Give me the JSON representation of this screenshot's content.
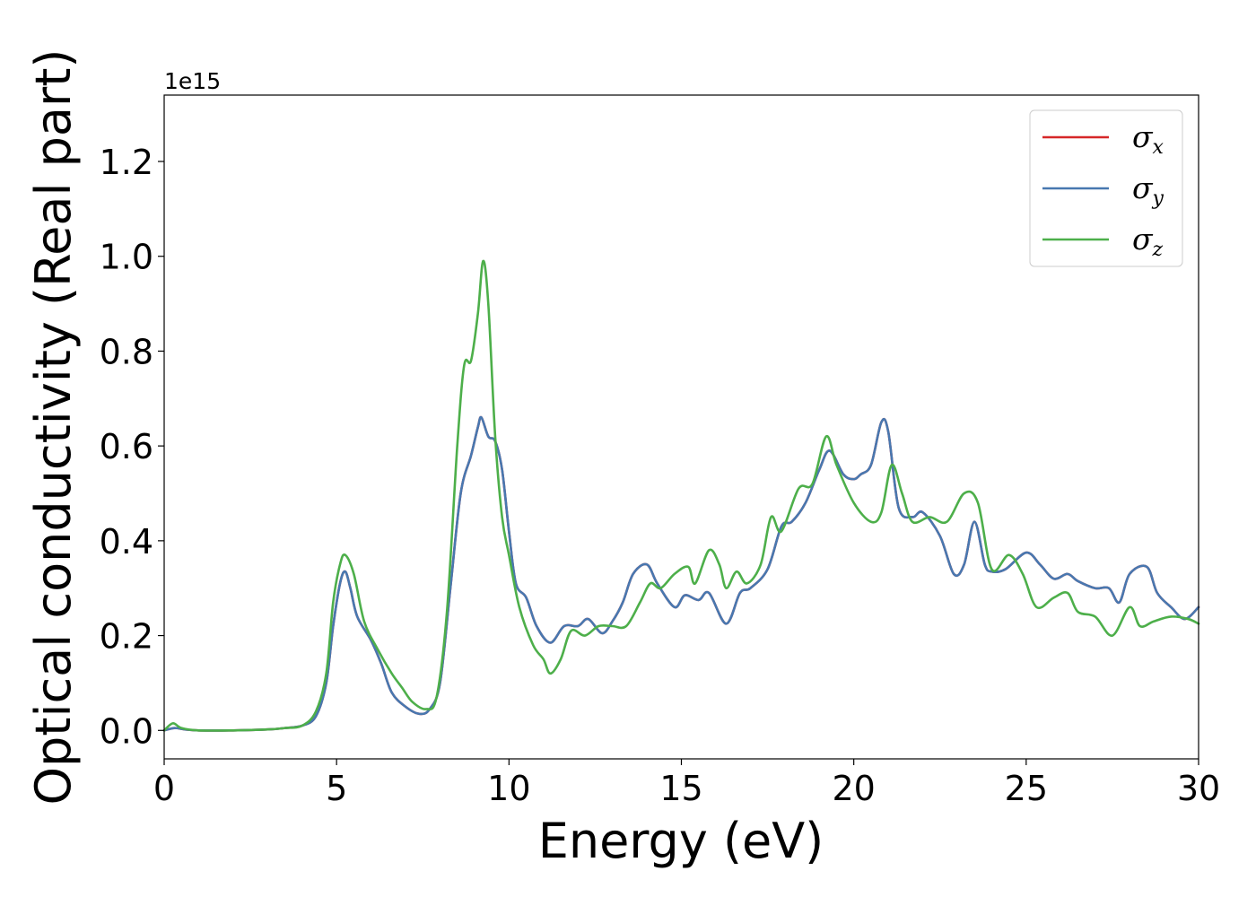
{
  "chart_data": {
    "type": "line",
    "xlabel": "Energy (eV)",
    "ylabel": "Optical conductivity (Real part)",
    "y_offset_label": "1e15",
    "xlim": [
      0,
      30
    ],
    "ylim": [
      -0.06,
      1.34
    ],
    "x_ticks": [
      0,
      5,
      10,
      15,
      20,
      25,
      30
    ],
    "x_tick_labels": [
      "0",
      "5",
      "10",
      "15",
      "20",
      "25",
      "30"
    ],
    "y_ticks": [
      0.0,
      0.2,
      0.4,
      0.6,
      0.8,
      1.0,
      1.2
    ],
    "y_tick_labels": [
      "0.0",
      "0.2",
      "0.4",
      "0.6",
      "0.8",
      "1.0",
      "1.2"
    ],
    "grid": false,
    "legend_position": "top-right",
    "series": [
      {
        "name": "σx",
        "name_base": "σ",
        "name_sub": "x",
        "color": "#d62728",
        "points": [
          [
            0,
            0.0
          ],
          [
            0.3,
            0.005
          ],
          [
            0.6,
            0.002
          ],
          [
            1.0,
            0.0
          ],
          [
            2.0,
            0.0
          ],
          [
            3.0,
            0.002
          ],
          [
            3.5,
            0.005
          ],
          [
            4.0,
            0.01
          ],
          [
            4.4,
            0.03
          ],
          [
            4.7,
            0.1
          ],
          [
            4.9,
            0.22
          ],
          [
            5.1,
            0.31
          ],
          [
            5.25,
            0.335
          ],
          [
            5.4,
            0.3
          ],
          [
            5.6,
            0.24
          ],
          [
            6.0,
            0.19
          ],
          [
            6.3,
            0.14
          ],
          [
            6.6,
            0.08
          ],
          [
            7.0,
            0.05
          ],
          [
            7.4,
            0.035
          ],
          [
            7.7,
            0.045
          ],
          [
            8.0,
            0.1
          ],
          [
            8.3,
            0.3
          ],
          [
            8.6,
            0.5
          ],
          [
            8.9,
            0.58
          ],
          [
            9.1,
            0.64
          ],
          [
            9.2,
            0.66
          ],
          [
            9.4,
            0.62
          ],
          [
            9.6,
            0.61
          ],
          [
            9.8,
            0.55
          ],
          [
            10.0,
            0.42
          ],
          [
            10.2,
            0.31
          ],
          [
            10.5,
            0.28
          ],
          [
            10.8,
            0.22
          ],
          [
            11.2,
            0.185
          ],
          [
            11.6,
            0.22
          ],
          [
            12.0,
            0.22
          ],
          [
            12.3,
            0.235
          ],
          [
            12.7,
            0.205
          ],
          [
            13.0,
            0.23
          ],
          [
            13.3,
            0.27
          ],
          [
            13.6,
            0.33
          ],
          [
            14.0,
            0.35
          ],
          [
            14.3,
            0.31
          ],
          [
            14.8,
            0.26
          ],
          [
            15.1,
            0.285
          ],
          [
            15.5,
            0.275
          ],
          [
            15.8,
            0.29
          ],
          [
            16.3,
            0.225
          ],
          [
            16.7,
            0.29
          ],
          [
            17.0,
            0.3
          ],
          [
            17.5,
            0.34
          ],
          [
            17.9,
            0.43
          ],
          [
            18.2,
            0.44
          ],
          [
            18.6,
            0.48
          ],
          [
            19.0,
            0.55
          ],
          [
            19.3,
            0.59
          ],
          [
            19.7,
            0.54
          ],
          [
            20.0,
            0.53
          ],
          [
            20.2,
            0.54
          ],
          [
            20.5,
            0.56
          ],
          [
            20.8,
            0.65
          ],
          [
            21.0,
            0.63
          ],
          [
            21.3,
            0.47
          ],
          [
            21.7,
            0.45
          ],
          [
            22.0,
            0.46
          ],
          [
            22.5,
            0.41
          ],
          [
            22.9,
            0.33
          ],
          [
            23.2,
            0.35
          ],
          [
            23.5,
            0.44
          ],
          [
            23.8,
            0.35
          ],
          [
            24.0,
            0.335
          ],
          [
            24.4,
            0.34
          ],
          [
            25.0,
            0.375
          ],
          [
            25.4,
            0.35
          ],
          [
            25.8,
            0.32
          ],
          [
            26.2,
            0.33
          ],
          [
            26.5,
            0.315
          ],
          [
            27.0,
            0.3
          ],
          [
            27.4,
            0.3
          ],
          [
            27.7,
            0.27
          ],
          [
            28.0,
            0.33
          ],
          [
            28.5,
            0.345
          ],
          [
            28.8,
            0.29
          ],
          [
            29.2,
            0.26
          ],
          [
            29.6,
            0.235
          ],
          [
            30.0,
            0.26
          ]
        ]
      },
      {
        "name": "σy",
        "name_base": "σ",
        "name_sub": "y",
        "color": "#4878b0",
        "points": [
          [
            0,
            0.0
          ],
          [
            0.3,
            0.005
          ],
          [
            0.6,
            0.002
          ],
          [
            1.0,
            0.0
          ],
          [
            2.0,
            0.0
          ],
          [
            3.0,
            0.002
          ],
          [
            3.5,
            0.005
          ],
          [
            4.0,
            0.01
          ],
          [
            4.4,
            0.03
          ],
          [
            4.7,
            0.1
          ],
          [
            4.9,
            0.22
          ],
          [
            5.1,
            0.31
          ],
          [
            5.25,
            0.335
          ],
          [
            5.4,
            0.3
          ],
          [
            5.6,
            0.24
          ],
          [
            6.0,
            0.19
          ],
          [
            6.3,
            0.14
          ],
          [
            6.6,
            0.08
          ],
          [
            7.0,
            0.05
          ],
          [
            7.4,
            0.035
          ],
          [
            7.7,
            0.045
          ],
          [
            8.0,
            0.1
          ],
          [
            8.3,
            0.3
          ],
          [
            8.6,
            0.5
          ],
          [
            8.9,
            0.58
          ],
          [
            9.1,
            0.64
          ],
          [
            9.2,
            0.66
          ],
          [
            9.4,
            0.62
          ],
          [
            9.6,
            0.61
          ],
          [
            9.8,
            0.55
          ],
          [
            10.0,
            0.42
          ],
          [
            10.2,
            0.31
          ],
          [
            10.5,
            0.28
          ],
          [
            10.8,
            0.22
          ],
          [
            11.2,
            0.185
          ],
          [
            11.6,
            0.22
          ],
          [
            12.0,
            0.22
          ],
          [
            12.3,
            0.235
          ],
          [
            12.7,
            0.205
          ],
          [
            13.0,
            0.23
          ],
          [
            13.3,
            0.27
          ],
          [
            13.6,
            0.33
          ],
          [
            14.0,
            0.35
          ],
          [
            14.3,
            0.31
          ],
          [
            14.8,
            0.26
          ],
          [
            15.1,
            0.285
          ],
          [
            15.5,
            0.275
          ],
          [
            15.8,
            0.29
          ],
          [
            16.3,
            0.225
          ],
          [
            16.7,
            0.29
          ],
          [
            17.0,
            0.3
          ],
          [
            17.5,
            0.34
          ],
          [
            17.9,
            0.43
          ],
          [
            18.2,
            0.44
          ],
          [
            18.6,
            0.48
          ],
          [
            19.0,
            0.55
          ],
          [
            19.3,
            0.59
          ],
          [
            19.7,
            0.54
          ],
          [
            20.0,
            0.53
          ],
          [
            20.2,
            0.54
          ],
          [
            20.5,
            0.56
          ],
          [
            20.8,
            0.65
          ],
          [
            21.0,
            0.63
          ],
          [
            21.3,
            0.47
          ],
          [
            21.7,
            0.45
          ],
          [
            22.0,
            0.46
          ],
          [
            22.5,
            0.41
          ],
          [
            22.9,
            0.33
          ],
          [
            23.2,
            0.35
          ],
          [
            23.5,
            0.44
          ],
          [
            23.8,
            0.35
          ],
          [
            24.0,
            0.335
          ],
          [
            24.4,
            0.34
          ],
          [
            25.0,
            0.375
          ],
          [
            25.4,
            0.35
          ],
          [
            25.8,
            0.32
          ],
          [
            26.2,
            0.33
          ],
          [
            26.5,
            0.315
          ],
          [
            27.0,
            0.3
          ],
          [
            27.4,
            0.3
          ],
          [
            27.7,
            0.27
          ],
          [
            28.0,
            0.33
          ],
          [
            28.5,
            0.345
          ],
          [
            28.8,
            0.29
          ],
          [
            29.2,
            0.26
          ],
          [
            29.6,
            0.235
          ],
          [
            30.0,
            0.26
          ]
        ]
      },
      {
        "name": "σz",
        "name_base": "σ",
        "name_sub": "z",
        "color": "#4daf4a",
        "points": [
          [
            0,
            0.0
          ],
          [
            0.25,
            0.015
          ],
          [
            0.5,
            0.005
          ],
          [
            1.0,
            0.0
          ],
          [
            2.0,
            0.0
          ],
          [
            3.0,
            0.002
          ],
          [
            3.5,
            0.005
          ],
          [
            4.0,
            0.01
          ],
          [
            4.4,
            0.04
          ],
          [
            4.7,
            0.12
          ],
          [
            4.9,
            0.27
          ],
          [
            5.1,
            0.35
          ],
          [
            5.25,
            0.37
          ],
          [
            5.5,
            0.33
          ],
          [
            5.8,
            0.23
          ],
          [
            6.2,
            0.17
          ],
          [
            6.6,
            0.12
          ],
          [
            6.9,
            0.09
          ],
          [
            7.2,
            0.06
          ],
          [
            7.6,
            0.045
          ],
          [
            7.9,
            0.07
          ],
          [
            8.2,
            0.25
          ],
          [
            8.5,
            0.6
          ],
          [
            8.7,
            0.77
          ],
          [
            8.9,
            0.78
          ],
          [
            9.1,
            0.88
          ],
          [
            9.25,
            0.99
          ],
          [
            9.4,
            0.9
          ],
          [
            9.6,
            0.62
          ],
          [
            9.8,
            0.45
          ],
          [
            10.0,
            0.37
          ],
          [
            10.3,
            0.26
          ],
          [
            10.7,
            0.18
          ],
          [
            11.0,
            0.15
          ],
          [
            11.2,
            0.12
          ],
          [
            11.5,
            0.15
          ],
          [
            11.8,
            0.21
          ],
          [
            12.2,
            0.2
          ],
          [
            12.6,
            0.22
          ],
          [
            13.0,
            0.22
          ],
          [
            13.4,
            0.22
          ],
          [
            13.8,
            0.27
          ],
          [
            14.1,
            0.31
          ],
          [
            14.4,
            0.3
          ],
          [
            14.8,
            0.33
          ],
          [
            15.2,
            0.345
          ],
          [
            15.4,
            0.31
          ],
          [
            15.8,
            0.38
          ],
          [
            16.1,
            0.35
          ],
          [
            16.3,
            0.3
          ],
          [
            16.6,
            0.335
          ],
          [
            16.9,
            0.31
          ],
          [
            17.3,
            0.35
          ],
          [
            17.6,
            0.45
          ],
          [
            17.9,
            0.42
          ],
          [
            18.4,
            0.51
          ],
          [
            18.8,
            0.52
          ],
          [
            19.2,
            0.62
          ],
          [
            19.5,
            0.56
          ],
          [
            20.0,
            0.48
          ],
          [
            20.5,
            0.44
          ],
          [
            20.8,
            0.46
          ],
          [
            21.1,
            0.56
          ],
          [
            21.4,
            0.5
          ],
          [
            21.7,
            0.44
          ],
          [
            22.2,
            0.45
          ],
          [
            22.7,
            0.44
          ],
          [
            23.2,
            0.5
          ],
          [
            23.6,
            0.48
          ],
          [
            24.0,
            0.34
          ],
          [
            24.5,
            0.37
          ],
          [
            24.9,
            0.33
          ],
          [
            25.3,
            0.26
          ],
          [
            25.8,
            0.28
          ],
          [
            26.2,
            0.29
          ],
          [
            26.5,
            0.25
          ],
          [
            27.0,
            0.24
          ],
          [
            27.5,
            0.2
          ],
          [
            28.0,
            0.26
          ],
          [
            28.3,
            0.22
          ],
          [
            28.7,
            0.23
          ],
          [
            29.2,
            0.24
          ],
          [
            29.7,
            0.235
          ],
          [
            30.0,
            0.225
          ]
        ]
      }
    ]
  }
}
